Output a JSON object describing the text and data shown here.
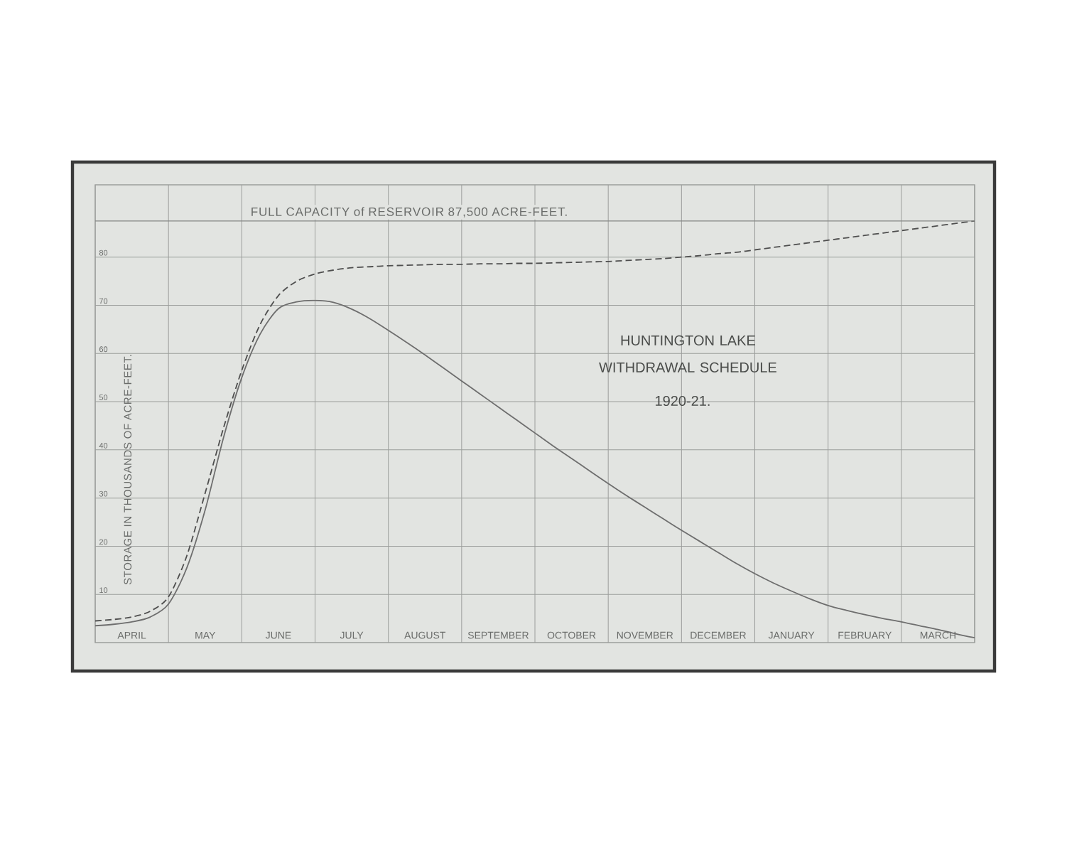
{
  "chart_data": {
    "type": "line",
    "title": "HUNTINGTON LAKE WITHDRAWAL SCHEDULE",
    "subtitle": "1920-21.",
    "ylabel": "STORAGE IN THOUSANDS OF ACRE-FEET.",
    "categories": [
      null,
      null,
      "APRIL",
      null,
      null,
      null,
      "MAY",
      null,
      null,
      null,
      "JUNE",
      null,
      null,
      null,
      "JULY",
      null,
      null,
      null,
      "AUGUST",
      null,
      null,
      null,
      "SEPTEMBER",
      null,
      null,
      null,
      "OCTOBER",
      null,
      null,
      null,
      "NOVEMBER",
      null,
      null,
      null,
      "DECEMBER",
      null,
      null,
      null,
      "JANUARY",
      null,
      null,
      null,
      "FEBRUARY",
      null,
      null,
      null,
      "MARCH",
      null,
      null
    ],
    "ylim": [
      0,
      95
    ],
    "yticks": [
      10,
      20,
      30,
      40,
      50,
      60,
      70,
      80
    ],
    "grid": true,
    "marker": "none",
    "ref_lines": [
      {
        "axis": "y",
        "value": 87.5,
        "label": "FULL CAPACITY of RESERVOIR 87,500 ACRE-FEET.",
        "color": "#858785"
      }
    ],
    "series": [
      {
        "color": "#4e4e4e",
        "line_style": "dashed",
        "values": [
          4.5,
          4.8,
          5.3,
          6.5,
          9.5,
          18,
          31,
          44.5,
          56.5,
          66,
          72,
          75,
          76.5,
          77.3,
          77.8,
          78.0,
          78.2,
          78.3,
          78.4,
          78.5,
          78.5,
          78.6,
          78.6,
          78.7,
          78.7,
          78.8,
          78.9,
          79.0,
          79.1,
          79.3,
          79.5,
          79.7,
          80.0,
          80.3,
          80.7,
          81.0,
          81.5,
          82.0,
          82.5,
          83.0,
          83.5,
          84.0,
          84.5,
          85.0,
          85.5,
          86.0,
          86.5,
          87.0,
          87.5
        ]
      },
      {
        "color": "#6e6e6e",
        "line_style": "solid",
        "values": [
          3.5,
          3.8,
          4.3,
          5.3,
          8,
          15.5,
          27.5,
          42.5,
          55,
          64,
          69.3,
          70.7,
          71,
          70.6,
          69.2,
          67.2,
          64.8,
          62.3,
          59.7,
          57.0,
          54.3,
          51.6,
          48.9,
          46.2,
          43.5,
          40.8,
          38.2,
          35.6,
          33.0,
          30.5,
          28.1,
          25.7,
          23.3,
          21.0,
          18.7,
          16.4,
          14.3,
          12.4,
          10.7,
          9.1,
          7.7,
          6.7,
          5.8,
          5.0,
          4.3,
          3.5,
          2.7,
          1.8,
          1
        ]
      }
    ]
  }
}
